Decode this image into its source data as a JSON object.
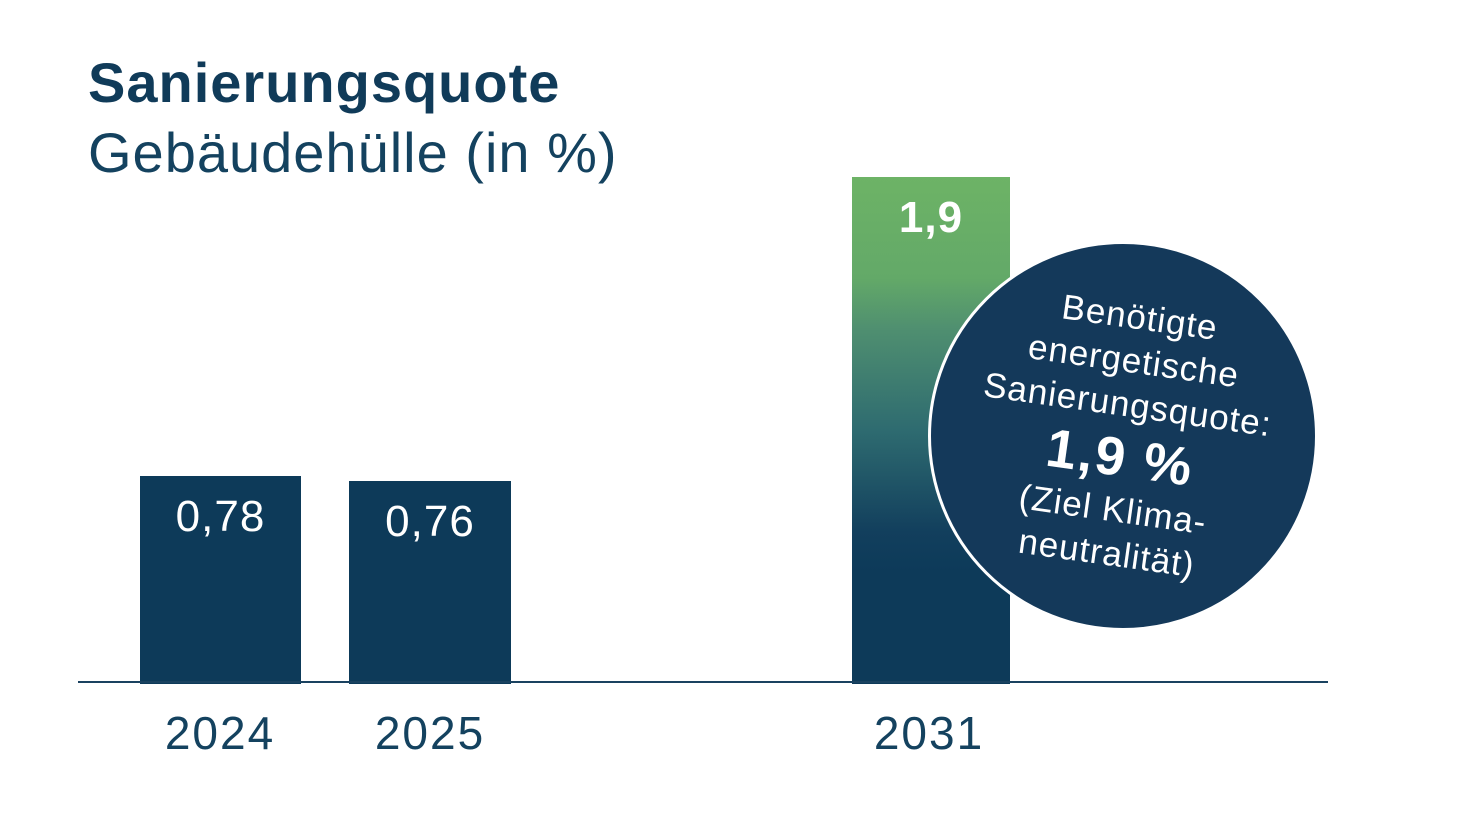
{
  "title": {
    "line1": "Sanierungsquote",
    "line2": "Gebäudehülle (in %)"
  },
  "chart_data": {
    "type": "bar",
    "categories": [
      "2024",
      "2025",
      "2031"
    ],
    "values": [
      0.78,
      0.76,
      1.9
    ],
    "value_labels": [
      "0,78",
      "0,76",
      "1,9"
    ],
    "title": "Sanierungsquote",
    "subtitle": "Gebäudehülle (in %)",
    "xlabel": "",
    "ylabel": "",
    "ylim": [
      0,
      1.9
    ],
    "grid": false,
    "legend": "none",
    "bar_colors": [
      "#0D3A59",
      "#0D3A59",
      "gradient:#6DB366->#0D3A59"
    ],
    "annotation": "Benötigte energetische Sanierungsquote: 1,9 % (Ziel Klimaneutralität)"
  },
  "badge": {
    "line1": "Benötigte",
    "line2": "energetische",
    "line3": "Sanierungsquote:",
    "value": "1,9 %",
    "line4": "(Ziel Klima-",
    "line5": "neutralität)"
  },
  "colors": {
    "navy_bar": "#0D3A59",
    "navy_text": "#14425F",
    "green_top": "#6DB366",
    "badge_bg": "#14395A",
    "badge_border": "#FFFFFF",
    "value_text": "#FFFFFF",
    "axis_line": "#1A4260",
    "background": "#FFFFFF"
  }
}
